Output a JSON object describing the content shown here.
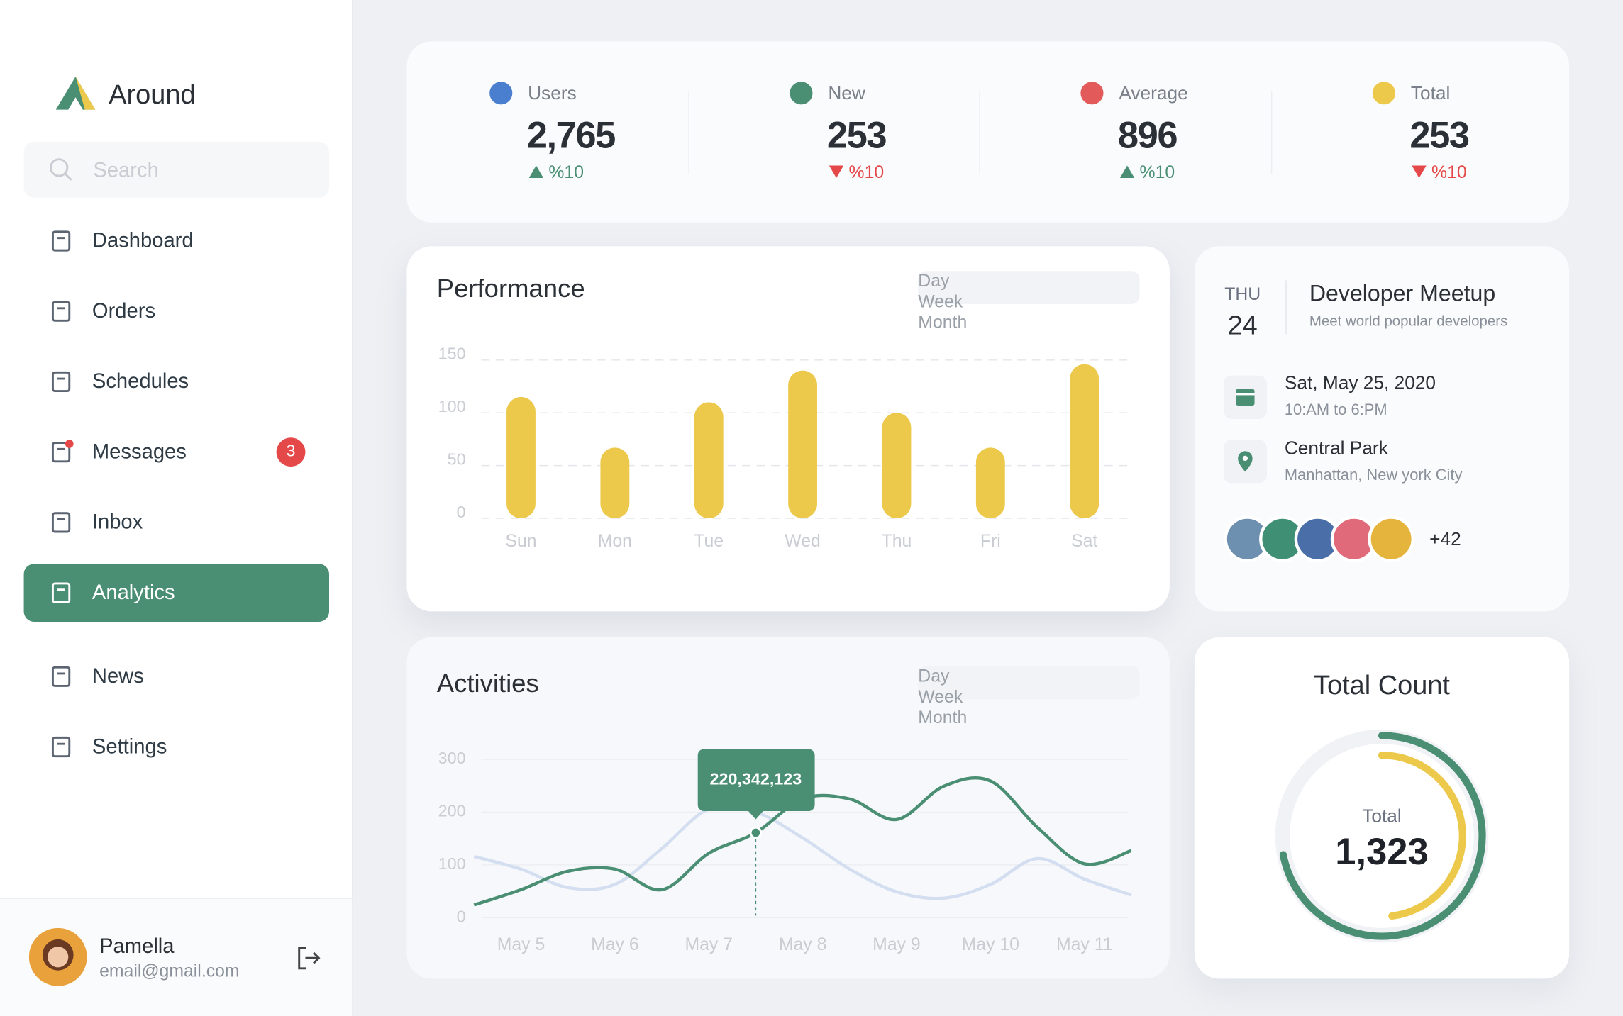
{
  "sidebar": {
    "brand": "Around",
    "search_placeholder": "Search",
    "nav": [
      {
        "label": "Dashboard"
      },
      {
        "label": "Orders"
      },
      {
        "label": "Schedules"
      },
      {
        "label": "Messages",
        "badge": 3
      },
      {
        "label": "Inbox"
      },
      {
        "label": "Analytics",
        "active": true
      },
      {
        "label": "News"
      },
      {
        "label": "Settings"
      }
    ],
    "user": {
      "name": "Pamella",
      "email": "email@gmail.com"
    }
  },
  "stats": [
    {
      "label": "Users",
      "value": "2,765",
      "change": "%10",
      "trend": "up"
    },
    {
      "label": "New",
      "value": "253",
      "change": "%10",
      "trend": "down"
    },
    {
      "label": "Average",
      "value": "896",
      "change": "%10",
      "trend": "up"
    },
    {
      "label": "Total",
      "value": "253",
      "change": "%10",
      "trend": "down"
    }
  ],
  "event": {
    "weekday": "THU",
    "day": "24",
    "title": "Developer Meetup",
    "subtitle": "Meet world popular developers",
    "date": "Sat, May 25, 2020",
    "time": "10:AM to 6:PM",
    "place": "Central Park",
    "address": "Manhattan, New york City",
    "more": "+42"
  },
  "chart_data": [
    {
      "type": "bar",
      "title": "Performance",
      "tabs": [
        {
          "label": "Day"
        },
        {
          "label": "Week",
          "active": true
        },
        {
          "label": "Month"
        }
      ],
      "categories": [
        "Sun",
        "Mon",
        "Tue",
        "Wed",
        "Thu",
        "Fri",
        "Sat"
      ],
      "values": [
        115,
        67,
        110,
        140,
        100,
        67,
        146
      ],
      "color": "#ecc94b",
      "ylim": [
        0,
        150
      ],
      "yticks": [
        0,
        50,
        100,
        150
      ],
      "grid": true
    },
    {
      "type": "line",
      "title": "Activities",
      "tabs": [
        {
          "label": "Day",
          "active": true
        },
        {
          "label": "Week"
        },
        {
          "label": "Month"
        }
      ],
      "categories": [
        null,
        "May 5",
        null,
        "May 6",
        null,
        "May 7",
        null,
        "May 8",
        null,
        "May 9",
        null,
        "May 10",
        null,
        "May 11",
        null
      ],
      "series": [
        {
          "color": "#4a8f73",
          "values": [
            24,
            53,
            88,
            92,
            53,
            122,
            161,
            225,
            225,
            186,
            249,
            259,
            171,
            102,
            127
          ]
        },
        {
          "color": "#d3def0",
          "values": [
            116,
            92,
            57,
            63,
            131,
            206,
            200,
            151,
            92,
            49,
            37,
            63,
            112,
            73,
            43
          ]
        }
      ],
      "annotation": "220,342,123",
      "ylim": [
        0,
        300
      ],
      "yticks": [
        0,
        100,
        200,
        300
      ],
      "grid": true
    },
    {
      "type": "radial",
      "title": "Total Count",
      "center_label": "Total",
      "total": "1,323",
      "values": [
        72,
        48
      ],
      "colors": [
        "#4a8f73",
        "#ecc94b"
      ],
      "ylim": [
        0,
        100
      ]
    }
  ]
}
